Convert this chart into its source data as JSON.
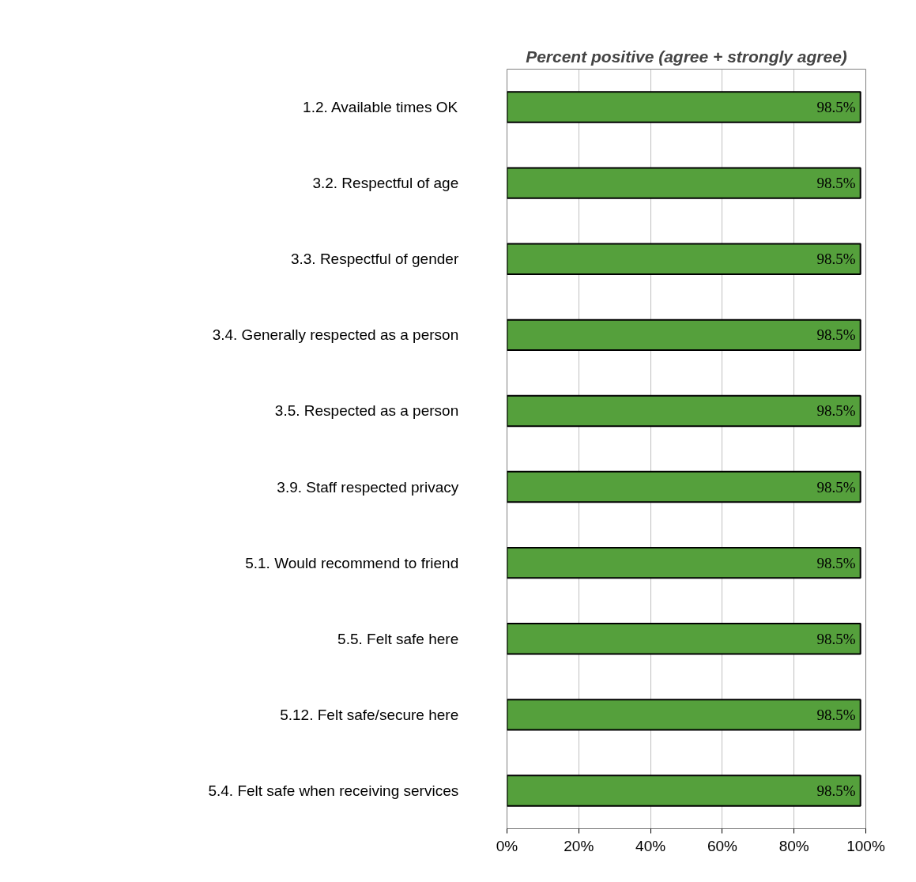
{
  "chart_data": {
    "type": "bar",
    "orientation": "horizontal",
    "title": "Percent positive (agree + strongly agree)",
    "categories": [
      "1.2.  Available times OK",
      "3.2.  Respectful of age",
      "3.3.  Respectful of gender",
      "3.4.  Generally respected as a person",
      "3.5.  Respected as a person",
      "3.9.  Staff respected privacy",
      "5.1.  Would recommend to friend",
      "5.5.  Felt safe here",
      "5.12.  Felt safe/secure here",
      "5.4.  Felt safe when receiving services"
    ],
    "values": [
      98.5,
      98.5,
      98.5,
      98.5,
      98.5,
      98.5,
      98.5,
      98.5,
      98.5,
      98.5
    ],
    "value_labels": [
      "98.5%",
      "98.5%",
      "98.5%",
      "98.5%",
      "98.5%",
      "98.5%",
      "98.5%",
      "98.5%",
      "98.5%",
      "98.5%"
    ],
    "color": "#55a03c",
    "xlim": [
      0,
      100
    ],
    "xticks": [
      {
        "value": 0,
        "label": "0%"
      },
      {
        "value": 20,
        "label": "20%"
      },
      {
        "value": 40,
        "label": "40%"
      },
      {
        "value": 60,
        "label": "60%"
      },
      {
        "value": 80,
        "label": "80%"
      },
      {
        "value": 100,
        "label": "100%"
      }
    ],
    "grid": "x"
  }
}
